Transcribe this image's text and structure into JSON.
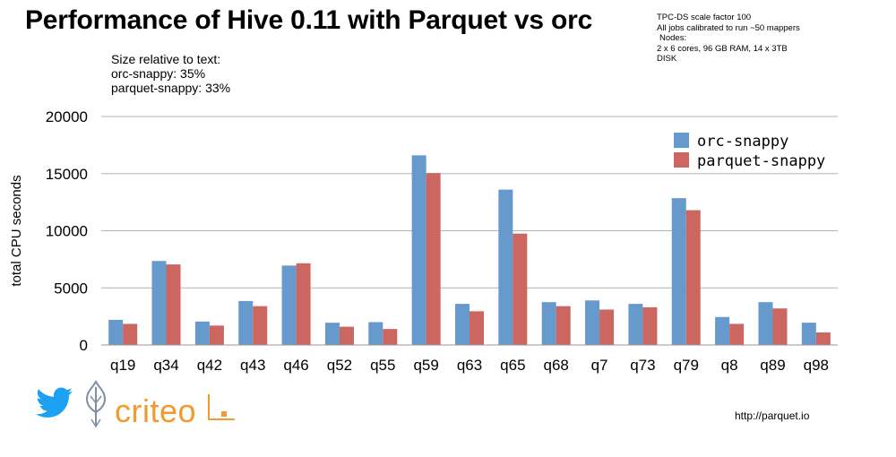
{
  "header": {
    "title": "Performance of Hive 0.11 with Parquet vs orc"
  },
  "size_note": {
    "lines": [
      "Size relative to text:",
      "orc-snappy: 35%",
      "parquet-snappy: 33%"
    ]
  },
  "setup_note": {
    "lines": [
      "TPC-DS scale factor 100",
      "All jobs calibrated to run ~50 mappers",
      "Nodes:",
      "2 x 6 cores, 96 GB RAM, 14 x 3TB",
      "DISK"
    ]
  },
  "footer": {
    "url": "http://parquet.io"
  },
  "logos": {
    "twitter_icon": "twitter-bird-icon",
    "criteo_icon": "criteo-leaf-icon",
    "criteo_word": "criteo"
  },
  "colors": {
    "orc": "#6699cc",
    "parquet": "#cc6660",
    "grid": "#b3b3b3",
    "twitter": "#1da1f2",
    "criteo": "#f29a2e"
  },
  "chart_data": {
    "type": "bar",
    "title": "Performance of Hive 0.11 with Parquet vs orc",
    "xlabel": "",
    "ylabel": "total CPU seconds",
    "ylim": [
      0,
      20000
    ],
    "yticks": [
      0,
      5000,
      10000,
      15000,
      20000
    ],
    "grid": true,
    "legend_position": "top-right",
    "categories": [
      "q19",
      "q34",
      "q42",
      "q43",
      "q46",
      "q52",
      "q55",
      "q59",
      "q63",
      "q65",
      "q68",
      "q7",
      "q73",
      "q79",
      "q8",
      "q89",
      "q98"
    ],
    "series": [
      {
        "name": "orc-snappy",
        "color": "#6699cc",
        "values": [
          2200,
          7350,
          2050,
          3850,
          6950,
          1950,
          2000,
          16600,
          3600,
          13600,
          3750,
          3900,
          3600,
          12850,
          2450,
          3750,
          1950
        ]
      },
      {
        "name": "parquet-snappy",
        "color": "#cc6660",
        "values": [
          1850,
          7050,
          1700,
          3400,
          7150,
          1600,
          1400,
          15050,
          2950,
          9750,
          3400,
          3100,
          3300,
          11800,
          1850,
          3200,
          1100
        ]
      }
    ]
  }
}
